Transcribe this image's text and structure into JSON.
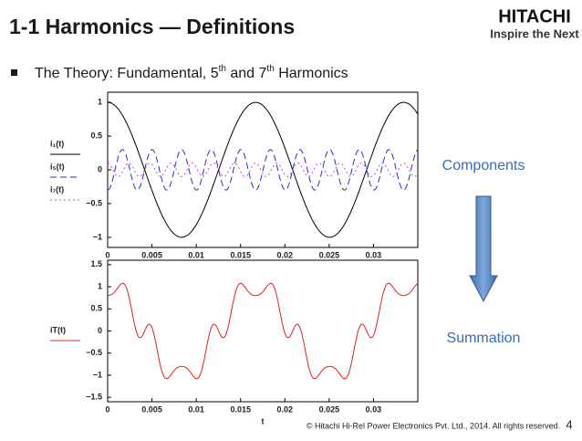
{
  "header": {
    "title": "1-1 Harmonics — Definitions",
    "logo": "HITACHI",
    "tagline": "Inspire the Next"
  },
  "bullet": {
    "parts": [
      "The Theory: Fundamental, 5",
      "th",
      " and 7",
      "th",
      " Harmonics"
    ]
  },
  "chart_data": [
    {
      "type": "line",
      "period": 0.0167,
      "xlim": [
        0,
        0.035
      ],
      "xticks": [
        0,
        0.005,
        0.01,
        0.015,
        0.02,
        0.025,
        0.03
      ],
      "ylim": [
        -1.15,
        1.15
      ],
      "yticks": [
        1,
        0.5,
        0,
        {
          "value": -0.5,
          "label": "−0.5"
        },
        {
          "value": -1,
          "label": "−1"
        }
      ],
      "series": [
        {
          "name": "i₁(t)",
          "color": "#000000",
          "harmonic": 1,
          "amplitude": 1,
          "dash": "solid"
        },
        {
          "name": "i₅(t)",
          "color": "#2a2ad0",
          "harmonic": 5,
          "amplitude": -0.3,
          "dash": "dashed"
        },
        {
          "name": "i₇(t)",
          "color": "#d040d0",
          "harmonic": 7,
          "amplitude": 0.1,
          "dash": "dotted"
        }
      ]
    },
    {
      "type": "sum",
      "xlabel": "t",
      "xlim": [
        0,
        0.035
      ],
      "xticks": [
        0,
        0.005,
        0.01,
        0.015,
        0.02,
        0.025,
        0.03
      ],
      "ylim": [
        -1.6,
        1.6
      ],
      "yticks": [
        1.5,
        1,
        0.5,
        0,
        {
          "value": -0.5,
          "label": "−0.5"
        },
        {
          "value": -1,
          "label": "−1"
        },
        {
          "value": -1.5,
          "label": "−1.5"
        }
      ],
      "series": [
        {
          "name": "iT(t)",
          "color": "#e02020"
        }
      ]
    }
  ],
  "side": {
    "top": "Components",
    "bottom": "Summation"
  },
  "footer": {
    "copyright": "© Hitachi Hi-Rel Power Electronics Pvt. Ltd., 2014. All rights reserved.",
    "page": "4"
  }
}
